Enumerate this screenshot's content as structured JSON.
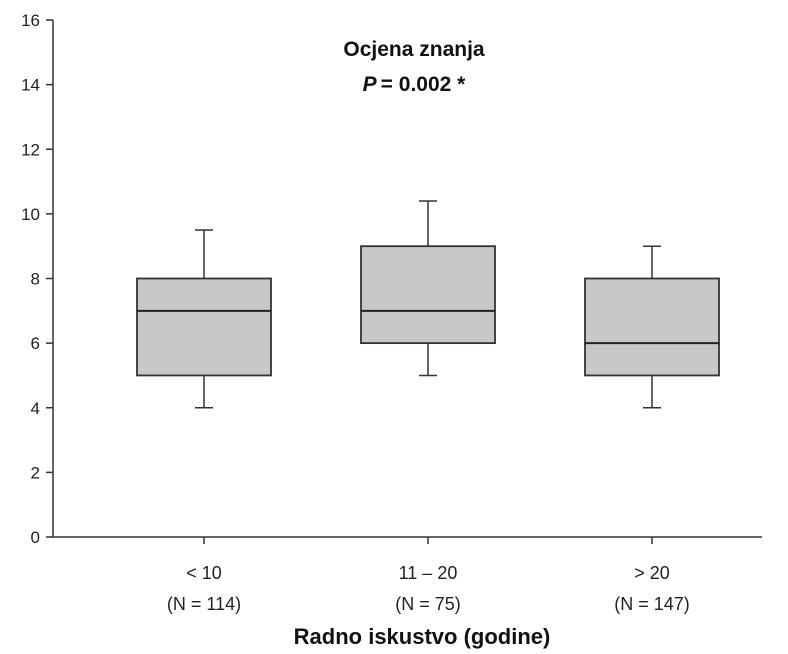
{
  "chart_data": {
    "type": "box",
    "title": "Ocjena znanja",
    "subtitle_label": "P",
    "subtitle_value": "= 0.002 *",
    "xlabel": "Radno iskustvo (godine)",
    "ylabel": "",
    "ylim": [
      0,
      16
    ],
    "yticks": [
      0,
      2,
      4,
      6,
      8,
      10,
      12,
      14,
      16
    ],
    "categories": [
      {
        "label": "< 10",
        "n_label": "(N = 114)"
      },
      {
        "label": "11 – 20",
        "n_label": "(N = 75)"
      },
      {
        "label": "> 20",
        "n_label": "(N = 147)"
      }
    ],
    "boxes": [
      {
        "whisker_low": 4,
        "q1": 5,
        "median": 7,
        "q3": 8,
        "whisker_high": 9.5
      },
      {
        "whisker_low": 5,
        "q1": 6,
        "median": 7,
        "q3": 9,
        "whisker_high": 10.4
      },
      {
        "whisker_low": 4,
        "q1": 5,
        "median": 6,
        "q3": 8,
        "whisker_high": 9
      }
    ],
    "grid": false,
    "box_color": "#c8c8c8",
    "line_color": "#333333"
  }
}
